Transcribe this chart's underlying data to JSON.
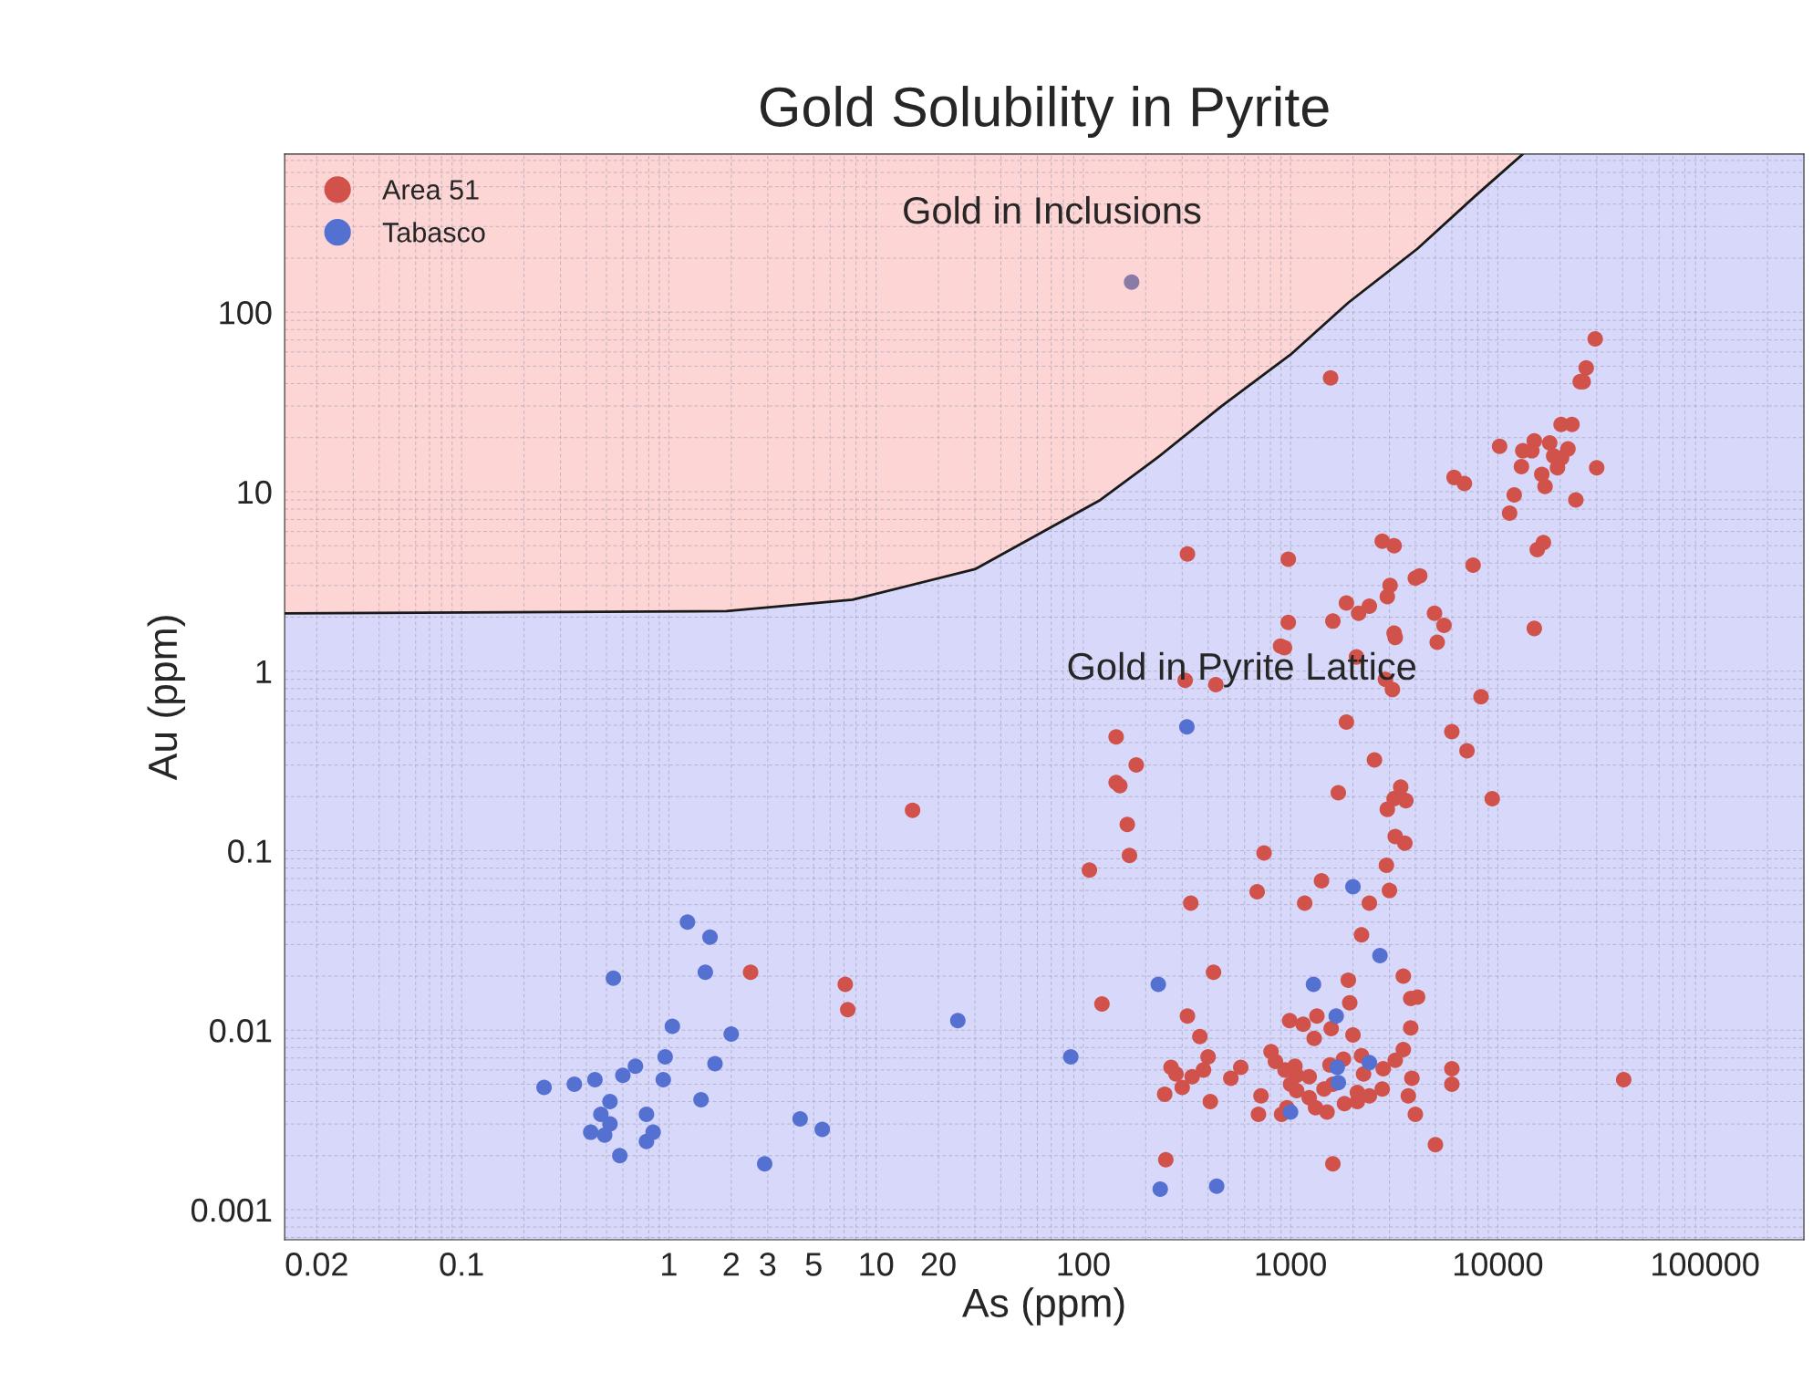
{
  "chart_data": {
    "type": "scatter",
    "title": "Gold Solubility in Pyrite",
    "xlabel": "As (ppm)",
    "ylabel": "Au (ppm)",
    "log": "xy",
    "xlim": [
      0.014,
      300000
    ],
    "ylim": [
      0.00068,
      760
    ],
    "xticks": [
      0.02,
      0.1,
      1,
      2,
      3,
      5,
      10,
      20,
      100,
      1000,
      10000,
      100000
    ],
    "yticks": [
      0.001,
      0.01,
      0.1,
      1,
      10,
      100
    ],
    "grid": true,
    "legend": "top left",
    "bands": [
      {
        "axis": "y",
        "from": 0.00068,
        "to": 760,
        "color": "#d8d8fb"
      }
    ],
    "annotations": [
      "Gold in Inclusions",
      "Gold in Pyrite Lattice"
    ],
    "series": [
      {
        "type": "line",
        "color": "#1a1a1a",
        "x": [
          0.014,
          1.9,
          7.7,
          30,
          121,
          230,
          465,
          1000,
          1900,
          4100,
          7800,
          13200
        ],
        "values": [
          2.1,
          2.16,
          2.5,
          3.7,
          9.0,
          15.6,
          30,
          58,
          113,
          226,
          445,
          760
        ],
        "lower": [
          2.1,
          2.16,
          2.5,
          3.7,
          9.0,
          15.6,
          30,
          58,
          113,
          226,
          445,
          760
        ],
        "upper": [
          760,
          760,
          760,
          760,
          760,
          760,
          760,
          760,
          760,
          760,
          760,
          760
        ]
      },
      {
        "name": "Area 51",
        "color": "#d0524a",
        "marker": "circle",
        "x": [
          2.48,
          7.1,
          7.3,
          15,
          107,
          123,
          144,
          144,
          150,
          180,
          163,
          167,
          1560,
          318,
          310,
          436,
          330,
          425,
          318,
          365,
          400,
          247,
          250,
          265,
          280,
          300,
          335,
          380,
          410,
          515,
          575,
          745,
          690,
          720,
          700,
          805,
          845,
          960,
          975,
          975,
          935,
          895,
          990,
          1070,
          1170,
          1150,
          1410,
          1340,
          1300,
          1600,
          1860,
          2080,
          2130,
          2400,
          1860,
          1700,
          1900,
          1930,
          2200,
          2400,
          1600,
          2540,
          2770,
          3160,
          3020,
          2930,
          3160,
          3200,
          2870,
          3100,
          2930,
          3160,
          3400,
          3600,
          3200,
          3560,
          2900,
          3000,
          3500,
          3800,
          4100,
          3800,
          3500,
          3200,
          3850,
          3700,
          4000,
          5000,
          4000,
          4200,
          4950,
          5500,
          5100,
          6000,
          7100,
          8300,
          7600,
          6000,
          6000,
          9400,
          6150,
          6900,
          10200,
          11400,
          12000,
          13200,
          13000,
          15000,
          14600,
          16300,
          17800,
          16900,
          18600,
          19400,
          20300,
          21800,
          20200,
          22800,
          23800,
          15500,
          16600,
          15000,
          30000,
          29500,
          26700,
          25800,
          25000,
          40500,
          940,
          1050,
          1000,
          1070,
          1230,
          1230,
          1320,
          1500,
          1450,
          1600,
          1550,
          1800,
          1820,
          2100,
          2100,
          2200,
          2250,
          2400,
          2770,
          2800,
          1570,
          2000,
          905
        ],
        "values": [
          0.021,
          0.018,
          0.013,
          0.168,
          0.078,
          0.014,
          0.43,
          0.24,
          0.23,
          0.3,
          0.14,
          0.094,
          43,
          4.5,
          0.89,
          0.84,
          0.051,
          0.021,
          0.012,
          0.0092,
          0.0071,
          0.0044,
          0.0019,
          0.0062,
          0.0057,
          0.0048,
          0.0055,
          0.006,
          0.004,
          0.0054,
          0.0062,
          0.097,
          0.059,
          0.0043,
          0.0034,
          0.0076,
          0.0067,
          0.0037,
          4.2,
          1.87,
          1.35,
          1.38,
          0.0113,
          0.0056,
          0.051,
          0.0108,
          0.068,
          0.012,
          0.009,
          1.9,
          2.4,
          1.2,
          2.1,
          2.3,
          0.52,
          0.21,
          0.019,
          0.0142,
          0.034,
          0.051,
          0.0018,
          0.32,
          5.3,
          5.0,
          3.0,
          2.6,
          1.63,
          1.54,
          0.9,
          0.79,
          0.17,
          0.195,
          0.226,
          0.19,
          0.12,
          0.11,
          0.083,
          0.06,
          0.02,
          0.015,
          0.0153,
          0.0103,
          0.0078,
          0.0068,
          0.0054,
          0.0043,
          0.0034,
          0.0023,
          3.3,
          3.4,
          2.1,
          1.8,
          1.45,
          0.46,
          0.36,
          0.72,
          3.9,
          0.0061,
          0.005,
          0.195,
          12,
          11.1,
          17.9,
          7.6,
          9.6,
          16.9,
          13.8,
          19.2,
          16.9,
          12.5,
          18.7,
          10.7,
          15.8,
          13.6,
          15.4,
          17.3,
          23.7,
          23.7,
          9.0,
          4.75,
          5.2,
          1.73,
          13.6,
          71,
          49,
          41,
          41,
          0.0053,
          0.006,
          0.0063,
          0.005,
          0.0046,
          0.0055,
          0.0042,
          0.0037,
          0.0035,
          0.0047,
          0.005,
          0.0064,
          0.0069,
          0.0039,
          0.004,
          0.0045,
          0.0072,
          0.0057,
          0.0043,
          0.0047,
          0.0061,
          0.0102,
          0.0094,
          0.0034
        ]
      },
      {
        "name": "Tabasco",
        "color": "#5470d0",
        "marker": "circle",
        "x": [
          0.25,
          0.35,
          0.44,
          0.54,
          0.47,
          0.42,
          0.52,
          0.52,
          0.49,
          0.58,
          0.6,
          0.69,
          0.78,
          0.78,
          0.84,
          0.94,
          0.96,
          1.04,
          1.23,
          1.58,
          1.5,
          1.43,
          1.67,
          2.0,
          2.9,
          4.3,
          5.5,
          24.8,
          87,
          230,
          316,
          235,
          440,
          2000,
          1290,
          1660,
          2700,
          2400,
          1680,
          1700,
          1000
        ],
        "values": [
          0.0048,
          0.005,
          0.0053,
          0.0195,
          0.0034,
          0.0027,
          0.004,
          0.003,
          0.0026,
          0.002,
          0.0056,
          0.0063,
          0.0034,
          0.0024,
          0.0027,
          0.0053,
          0.0071,
          0.0105,
          0.04,
          0.033,
          0.021,
          0.0041,
          0.0065,
          0.0095,
          0.0018,
          0.0032,
          0.0028,
          0.0113,
          0.0071,
          0.018,
          0.49,
          0.0013,
          0.00135,
          0.063,
          0.018,
          0.012,
          0.026,
          0.0066,
          0.0062,
          0.0051,
          0.0035
        ]
      },
      {
        "color": "#8a7aa8",
        "marker": "circle",
        "x": [
          171
        ],
        "values": [
          147
        ]
      }
    ]
  }
}
